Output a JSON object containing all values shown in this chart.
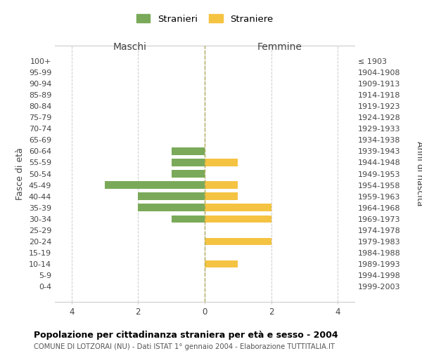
{
  "age_groups": [
    "100+",
    "95-99",
    "90-94",
    "85-89",
    "80-84",
    "75-79",
    "70-74",
    "65-69",
    "60-64",
    "55-59",
    "50-54",
    "45-49",
    "40-44",
    "35-39",
    "30-34",
    "25-29",
    "20-24",
    "15-19",
    "10-14",
    "5-9",
    "0-4"
  ],
  "birth_years": [
    "≤ 1903",
    "1904-1908",
    "1909-1913",
    "1914-1918",
    "1919-1923",
    "1924-1928",
    "1929-1933",
    "1934-1938",
    "1939-1943",
    "1944-1948",
    "1949-1953",
    "1954-1958",
    "1959-1963",
    "1964-1968",
    "1969-1973",
    "1974-1978",
    "1979-1983",
    "1984-1988",
    "1989-1993",
    "1994-1998",
    "1999-2003"
  ],
  "males": [
    0,
    0,
    0,
    0,
    0,
    0,
    0,
    0,
    1,
    1,
    1,
    3,
    2,
    2,
    1,
    0,
    0,
    0,
    0,
    0,
    0
  ],
  "females": [
    0,
    0,
    0,
    0,
    0,
    0,
    0,
    0,
    0,
    1,
    0,
    1,
    1,
    2,
    2,
    0,
    2,
    0,
    1,
    0,
    0
  ],
  "male_color": "#7aaa59",
  "female_color": "#f5c342",
  "bar_height": 0.65,
  "xlabel_left": "Maschi",
  "xlabel_right": "Femmine",
  "ylabel_left": "Fasce di età",
  "ylabel_right": "Anni di nascita",
  "title": "Popolazione per cittadinanza straniera per età e sesso - 2004",
  "subtitle": "COMUNE DI LOTZORAI (NU) - Dati ISTAT 1° gennaio 2004 - Elaborazione TUTTITALIA.IT",
  "legend_male": "Stranieri",
  "legend_female": "Straniere",
  "grid_color": "#cccccc",
  "background_color": "#ffffff",
  "text_color": "#444444",
  "dashed_line_color": "#aaa855"
}
